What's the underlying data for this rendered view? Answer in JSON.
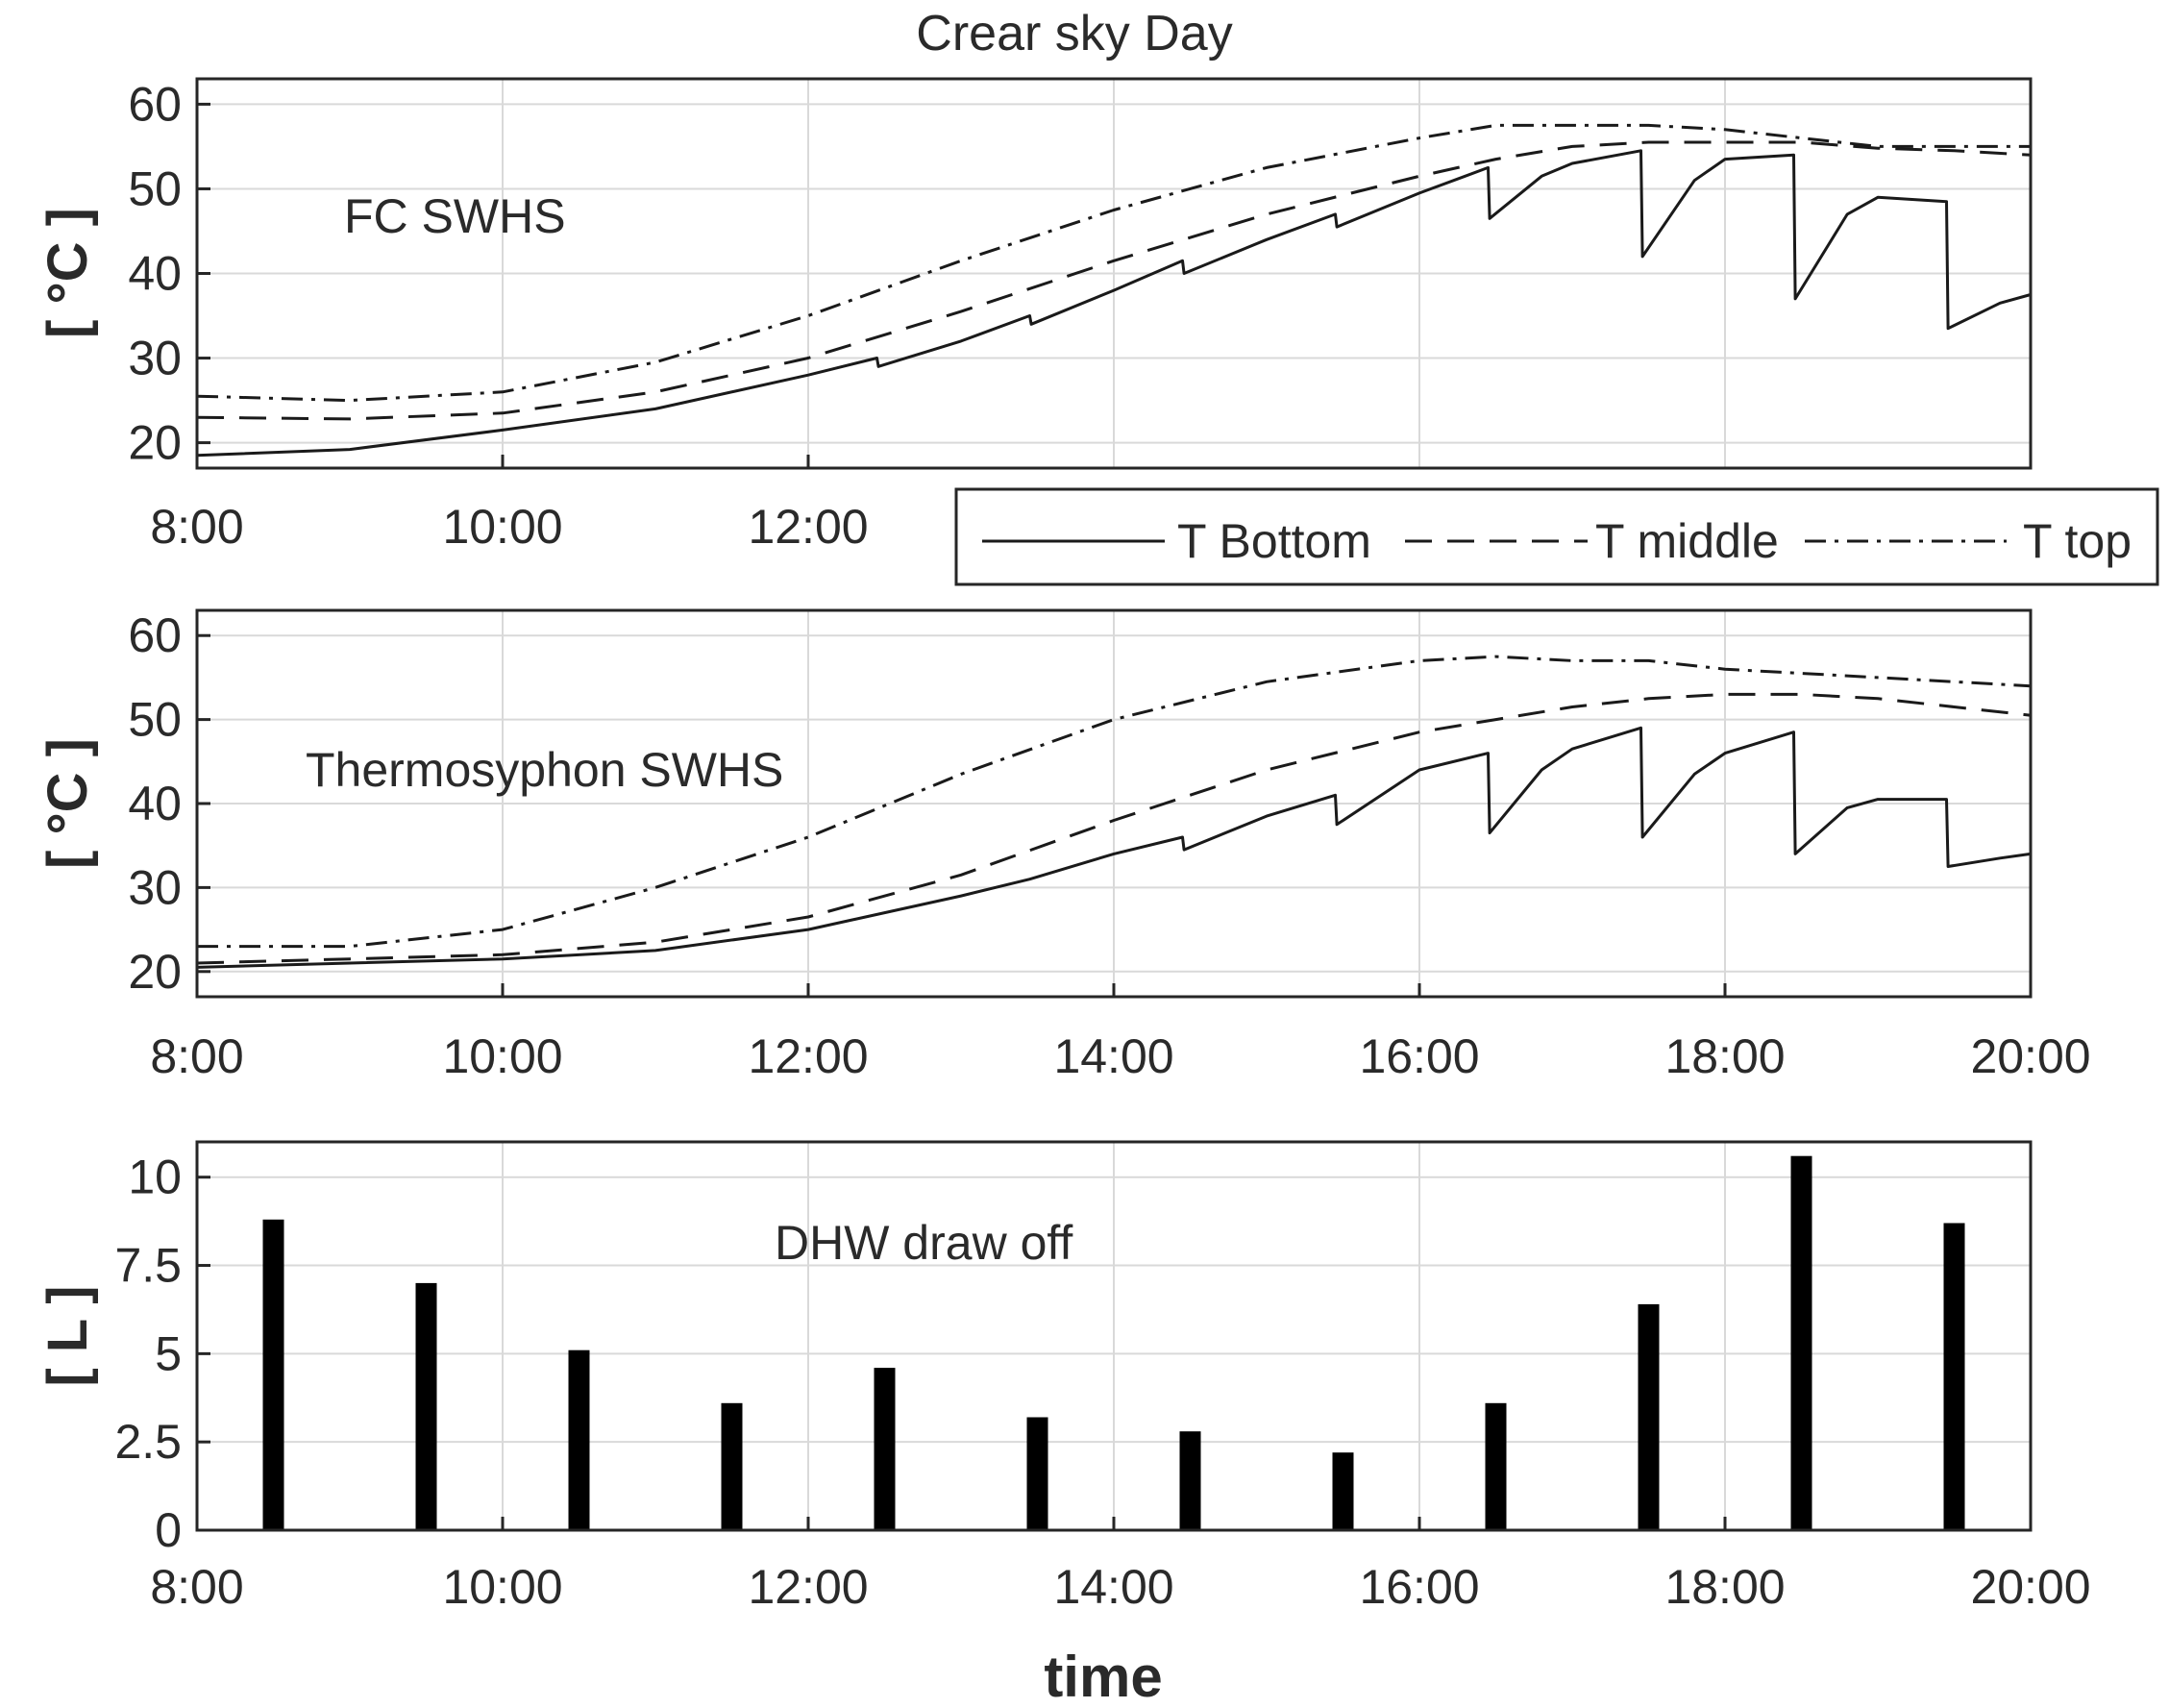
{
  "chart_data": [
    {
      "type": "line",
      "title": "Crear sky Day",
      "annotation": "FC SWHS",
      "ylabel": "[ °C ]",
      "xlabel": "",
      "xlim": [
        8,
        20
      ],
      "ylim": [
        17,
        63
      ],
      "yticks": [
        20,
        30,
        40,
        50,
        60
      ],
      "xtick_labels": [
        "8:00",
        "10:00",
        "12:00"
      ],
      "grid": true,
      "series": [
        {
          "name": "T Bottom",
          "style": "solid",
          "x": [
            8.0,
            9.0,
            10.0,
            11.0,
            12.0,
            12.45,
            12.46,
            13.0,
            13.45,
            13.46,
            14.0,
            14.45,
            14.46,
            15.0,
            15.45,
            15.46,
            16.0,
            16.45,
            16.46,
            16.8,
            17.0,
            17.45,
            17.46,
            17.8,
            18.0,
            18.45,
            18.46,
            18.8,
            19.0,
            19.45,
            19.46,
            19.8,
            20.0
          ],
          "y": [
            18.5,
            19.2,
            21.5,
            24.0,
            28.0,
            30.0,
            29.0,
            32.0,
            35.0,
            34.0,
            38.0,
            41.5,
            40.0,
            44.0,
            47.0,
            45.5,
            49.5,
            52.5,
            46.5,
            51.5,
            53.0,
            54.5,
            42.0,
            51.0,
            53.5,
            54.0,
            37.0,
            47.0,
            49.0,
            48.5,
            33.5,
            36.5,
            37.5
          ]
        },
        {
          "name": "T middle",
          "style": "dashed",
          "x": [
            8.0,
            9.0,
            10.0,
            11.0,
            12.0,
            13.0,
            14.0,
            15.0,
            16.0,
            16.5,
            17.0,
            17.5,
            18.0,
            18.5,
            19.0,
            19.5,
            20.0
          ],
          "y": [
            23.0,
            22.8,
            23.5,
            26.0,
            30.0,
            35.5,
            41.5,
            47.0,
            51.5,
            53.5,
            55.0,
            55.5,
            55.5,
            55.5,
            54.8,
            54.5,
            54.0
          ]
        },
        {
          "name": "T top",
          "style": "dashdot",
          "x": [
            8.0,
            9.0,
            10.0,
            11.0,
            12.0,
            13.0,
            14.0,
            15.0,
            16.0,
            16.5,
            17.0,
            17.5,
            18.0,
            18.5,
            19.0,
            19.5,
            20.0
          ],
          "y": [
            25.5,
            25.0,
            26.0,
            29.5,
            35.0,
            41.5,
            47.5,
            52.5,
            56.0,
            57.5,
            57.5,
            57.5,
            57.0,
            56.0,
            55.0,
            55.0,
            55.0
          ]
        }
      ]
    },
    {
      "type": "line",
      "title": "",
      "annotation": "Thermosyphon SWHS",
      "ylabel": "[ °C ]",
      "xlabel": "",
      "xlim": [
        8,
        20
      ],
      "ylim": [
        17,
        63
      ],
      "yticks": [
        20,
        30,
        40,
        50,
        60
      ],
      "xtick_labels": [
        "8:00",
        "10:00",
        "12:00",
        "14:00",
        "16:00",
        "18:00",
        "20:00"
      ],
      "grid": true,
      "series": [
        {
          "name": "T Bottom",
          "style": "solid",
          "x": [
            8.0,
            9.0,
            10.0,
            11.0,
            12.0,
            13.0,
            13.45,
            14.0,
            14.45,
            14.46,
            15.0,
            15.45,
            15.46,
            16.0,
            16.45,
            16.46,
            16.8,
            17.0,
            17.45,
            17.46,
            17.8,
            18.0,
            18.45,
            18.46,
            18.8,
            19.0,
            19.45,
            19.46,
            19.8,
            20.0
          ],
          "y": [
            20.5,
            21.0,
            21.5,
            22.5,
            25.0,
            29.0,
            31.0,
            34.0,
            36.0,
            34.5,
            38.5,
            41.0,
            37.5,
            44.0,
            46.0,
            36.5,
            44.0,
            46.5,
            49.0,
            36.0,
            43.5,
            46.0,
            48.5,
            34.0,
            39.5,
            40.5,
            40.5,
            32.5,
            33.5,
            34.0
          ]
        },
        {
          "name": "T middle",
          "style": "dashed",
          "x": [
            8.0,
            9.0,
            10.0,
            11.0,
            12.0,
            13.0,
            14.0,
            15.0,
            16.0,
            16.5,
            17.0,
            17.5,
            18.0,
            18.5,
            19.0,
            19.5,
            20.0
          ],
          "y": [
            21.0,
            21.5,
            22.0,
            23.5,
            26.5,
            31.5,
            38.0,
            44.0,
            48.5,
            50.0,
            51.5,
            52.5,
            53.0,
            53.0,
            52.5,
            51.5,
            50.5
          ]
        },
        {
          "name": "T top",
          "style": "dashdot",
          "x": [
            8.0,
            9.0,
            10.0,
            11.0,
            12.0,
            13.0,
            14.0,
            15.0,
            16.0,
            16.5,
            17.0,
            17.5,
            18.0,
            18.5,
            19.0,
            19.5,
            20.0
          ],
          "y": [
            23.0,
            23.0,
            25.0,
            30.0,
            36.0,
            43.5,
            50.0,
            54.5,
            57.0,
            57.5,
            57.0,
            57.0,
            56.0,
            55.5,
            55.0,
            54.5,
            54.0
          ]
        }
      ]
    },
    {
      "type": "bar",
      "title": "",
      "annotation": "DHW draw off",
      "ylabel": "[ L ]",
      "xlabel": "time",
      "xlim": [
        8,
        20
      ],
      "ylim": [
        0,
        11
      ],
      "yticks": [
        0,
        2.5,
        5,
        7.5,
        10
      ],
      "ytick_labels": [
        "0",
        "2.5",
        "5",
        "7.5",
        "10"
      ],
      "xtick_labels": [
        "8:00",
        "10:00",
        "12:00",
        "14:00",
        "16:00",
        "18:00",
        "20:00"
      ],
      "grid": true,
      "x": [
        8.5,
        9.5,
        10.5,
        11.5,
        12.5,
        13.5,
        14.5,
        15.5,
        16.5,
        17.5,
        18.5,
        19.5
      ],
      "values": [
        8.8,
        7.0,
        5.1,
        3.6,
        4.6,
        3.2,
        2.8,
        2.2,
        3.6,
        6.4,
        10.6,
        8.7
      ]
    }
  ],
  "legend": {
    "placement": "between-top-and-middle-right",
    "entries": [
      {
        "label": "T Bottom",
        "style": "solid"
      },
      {
        "label": "T middle",
        "style": "dashed"
      },
      {
        "label": "T top",
        "style": "dashdot"
      }
    ]
  },
  "colors": {
    "line": "#1a1a1a",
    "bar": "#000000",
    "grid": "#d9d9d9",
    "frame": "#262626"
  }
}
